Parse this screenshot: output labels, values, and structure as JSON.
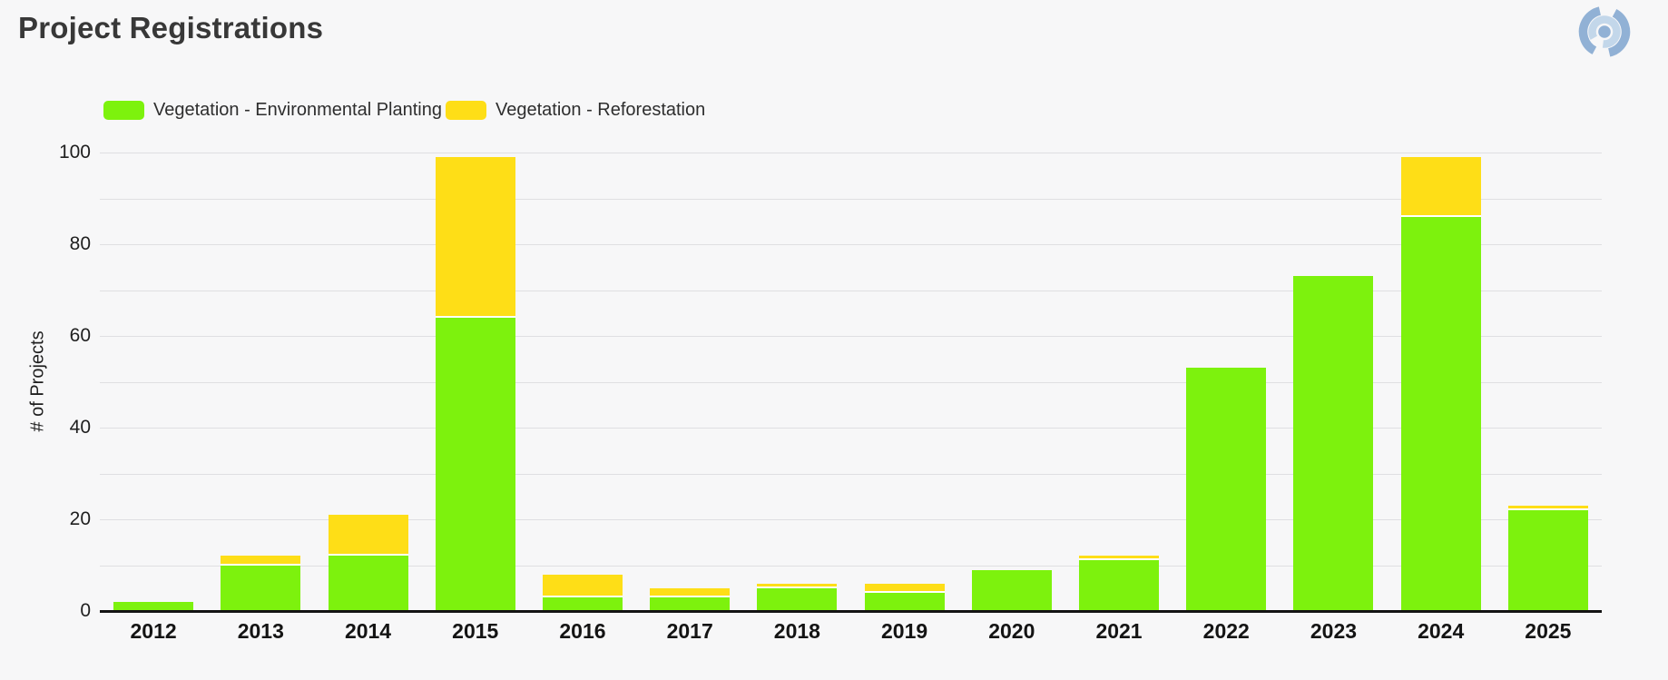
{
  "title": "Project Registrations",
  "logo": {
    "name": "brand-ring-logo",
    "outer_color": "#91b1d5",
    "inner_color": "#c3d7ea"
  },
  "colors": {
    "background": "#f7f7f8",
    "gridline": "#dfdfe2",
    "axis_line": "#141414",
    "title_text": "#383838",
    "tick_text": "#1f1f1f"
  },
  "chart_data": {
    "type": "bar",
    "stacked": true,
    "title": "Project Registrations",
    "xlabel": "",
    "ylabel": "# of Projects",
    "ylim": [
      0,
      100
    ],
    "grid": true,
    "gridline_step": 10,
    "legend_position": "top-left",
    "yticks_labeled": [
      0,
      20,
      40,
      60,
      80,
      100
    ],
    "categories": [
      "2012",
      "2013",
      "2014",
      "2015",
      "2016",
      "2017",
      "2018",
      "2019",
      "2020",
      "2021",
      "2022",
      "2023",
      "2024",
      "2025"
    ],
    "series": [
      {
        "name": "Vegetation - Environmental Planting",
        "color": "#7df20d",
        "values": [
          2,
          10,
          12,
          64,
          3,
          3,
          5,
          4,
          9,
          11,
          53,
          73,
          86,
          22
        ]
      },
      {
        "name": "Vegetation - Reforestation",
        "color": "#fede17",
        "values": [
          0,
          2,
          9,
          35,
          5,
          2,
          1,
          2,
          0,
          1,
          0,
          0,
          13,
          1
        ]
      }
    ],
    "totals": [
      2,
      12,
      21,
      99,
      8,
      5,
      6,
      6,
      9,
      12,
      53,
      73,
      99,
      23
    ]
  }
}
